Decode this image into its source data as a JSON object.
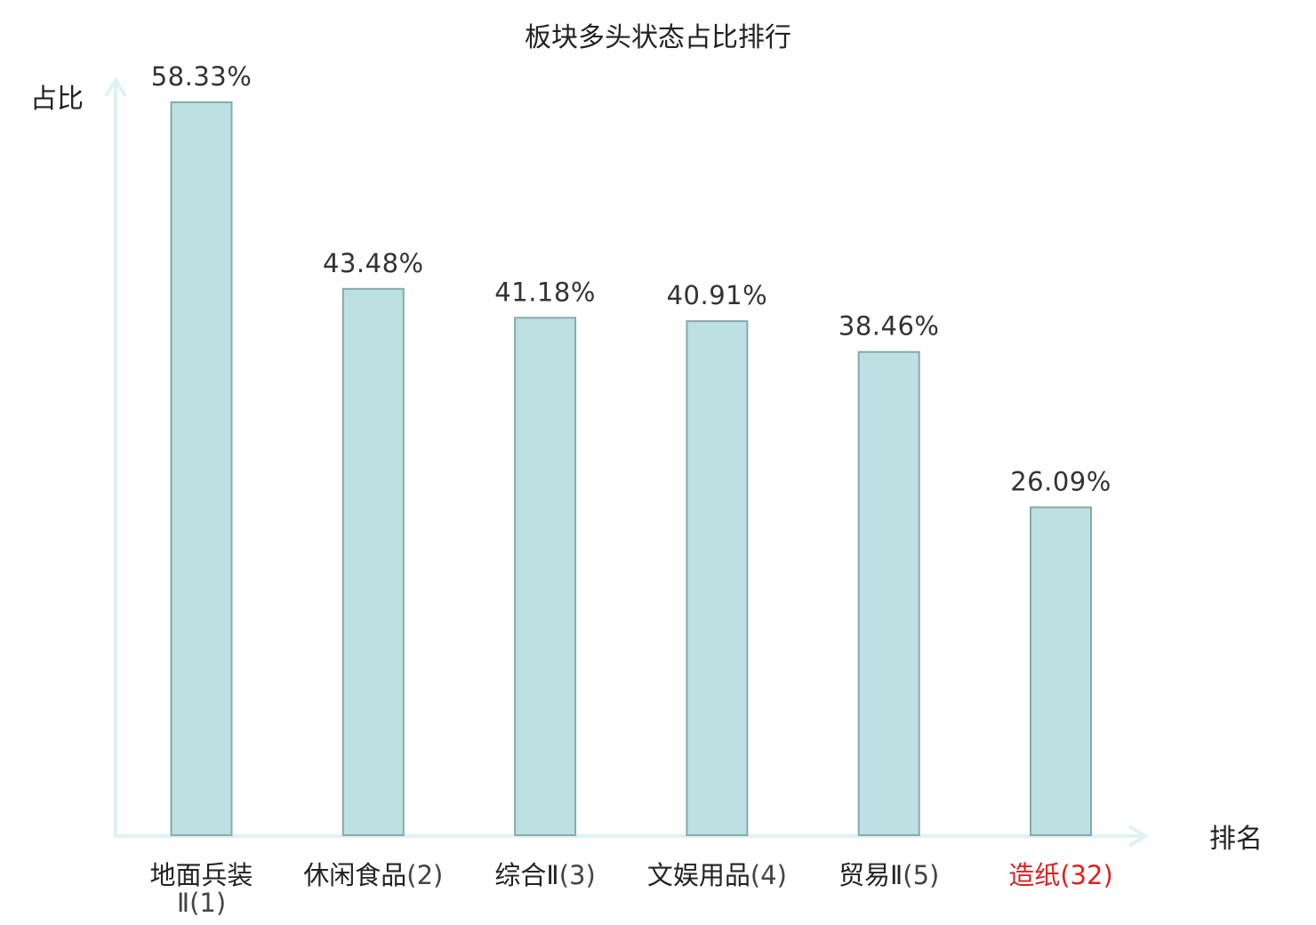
{
  "chart_data": {
    "type": "bar",
    "title": "板块多头状态占比排行",
    "xlabel": "排名",
    "ylabel": "占比",
    "categories": [
      {
        "name": "地面兵装Ⅱ",
        "rank": "(1)",
        "highlight": false
      },
      {
        "name": "休闲食品",
        "rank": "(2)",
        "highlight": false
      },
      {
        "name": "综合Ⅱ",
        "rank": "(3)",
        "highlight": false
      },
      {
        "name": "文娱用品",
        "rank": "(4)",
        "highlight": false
      },
      {
        "name": "贸易Ⅱ",
        "rank": "(5)",
        "highlight": false
      },
      {
        "name": "造纸",
        "rank": "(32)",
        "highlight": true
      }
    ],
    "values": [
      58.33,
      43.48,
      41.18,
      40.91,
      38.46,
      26.09
    ],
    "value_labels": [
      "58.33%",
      "43.48%",
      "41.18%",
      "40.91%",
      "38.46%",
      "26.09%"
    ],
    "ylim": [
      0,
      58.33
    ],
    "grid": false,
    "legend": "none"
  },
  "colors": {
    "bar_fill": "#bde1e3",
    "bar_stroke": "#87a9ab",
    "axis": "#dff2ef",
    "highlight_text": "#e02020"
  }
}
